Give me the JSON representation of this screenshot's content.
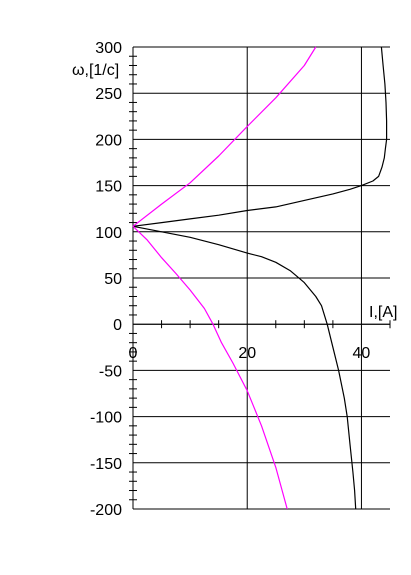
{
  "chart_data": {
    "type": "line",
    "xlabel": "I,[A]",
    "ylabel": "ω,[1/c]",
    "xlim": [
      0,
      45
    ],
    "ylim": [
      -200,
      300
    ],
    "x_ticks": [
      0,
      20,
      40
    ],
    "x_tick_labels": [
      "0",
      "20",
      "40"
    ],
    "y_ticks": [
      -200,
      -150,
      -100,
      -50,
      0,
      50,
      100,
      150,
      200,
      250,
      300
    ],
    "y_tick_labels": [
      "-200",
      "-150",
      "-100",
      "-50",
      "0",
      "50",
      "100",
      "150",
      "200",
      "250",
      "300"
    ],
    "grid": true,
    "colors": {
      "black_series": "#000000",
      "magenta_series": "#ff00ff"
    },
    "series": [
      {
        "color": "#000000",
        "points": [
          [
            0,
            106
          ],
          [
            5,
            110
          ],
          [
            10,
            114
          ],
          [
            15,
            118
          ],
          [
            20,
            123
          ],
          [
            25,
            127
          ],
          [
            30,
            134
          ],
          [
            35,
            141
          ],
          [
            38,
            146
          ],
          [
            40,
            150
          ],
          [
            42,
            155
          ],
          [
            43,
            160
          ],
          [
            43.6,
            170
          ],
          [
            44,
            180
          ],
          [
            44.2,
            190
          ],
          [
            44.4,
            200
          ],
          [
            44.4,
            220
          ],
          [
            44.3,
            240
          ],
          [
            44.1,
            260
          ],
          [
            43.8,
            280
          ],
          [
            43.5,
            300
          ]
        ]
      },
      {
        "color": "#000000",
        "points": [
          [
            0,
            106
          ],
          [
            5,
            100
          ],
          [
            10,
            94
          ],
          [
            15,
            86
          ],
          [
            20,
            77
          ],
          [
            22.5,
            73
          ],
          [
            25,
            67
          ],
          [
            27.5,
            58
          ],
          [
            30,
            45
          ],
          [
            32,
            30
          ],
          [
            33,
            20
          ],
          [
            34,
            0
          ],
          [
            35,
            -25
          ],
          [
            36,
            -50
          ],
          [
            37,
            -80
          ],
          [
            37.5,
            -100
          ],
          [
            38,
            -130
          ],
          [
            38.5,
            -160
          ],
          [
            38.8,
            -180
          ],
          [
            39,
            -200
          ]
        ]
      },
      {
        "color": "#ff00ff",
        "points": [
          [
            0,
            106
          ],
          [
            5,
            130
          ],
          [
            10,
            153
          ],
          [
            15,
            182
          ],
          [
            20,
            214
          ],
          [
            25,
            245
          ],
          [
            30,
            280
          ],
          [
            32,
            300
          ]
        ]
      },
      {
        "color": "#ff00ff",
        "points": [
          [
            0,
            106
          ],
          [
            2.5,
            91
          ],
          [
            5,
            72
          ],
          [
            7.5,
            55
          ],
          [
            10,
            37
          ],
          [
            12.5,
            17
          ],
          [
            14,
            0
          ],
          [
            15.5,
            -20
          ],
          [
            17.5,
            -42
          ],
          [
            20,
            -72
          ],
          [
            22.5,
            -110
          ],
          [
            25,
            -155
          ],
          [
            27,
            -200
          ]
        ]
      }
    ]
  }
}
